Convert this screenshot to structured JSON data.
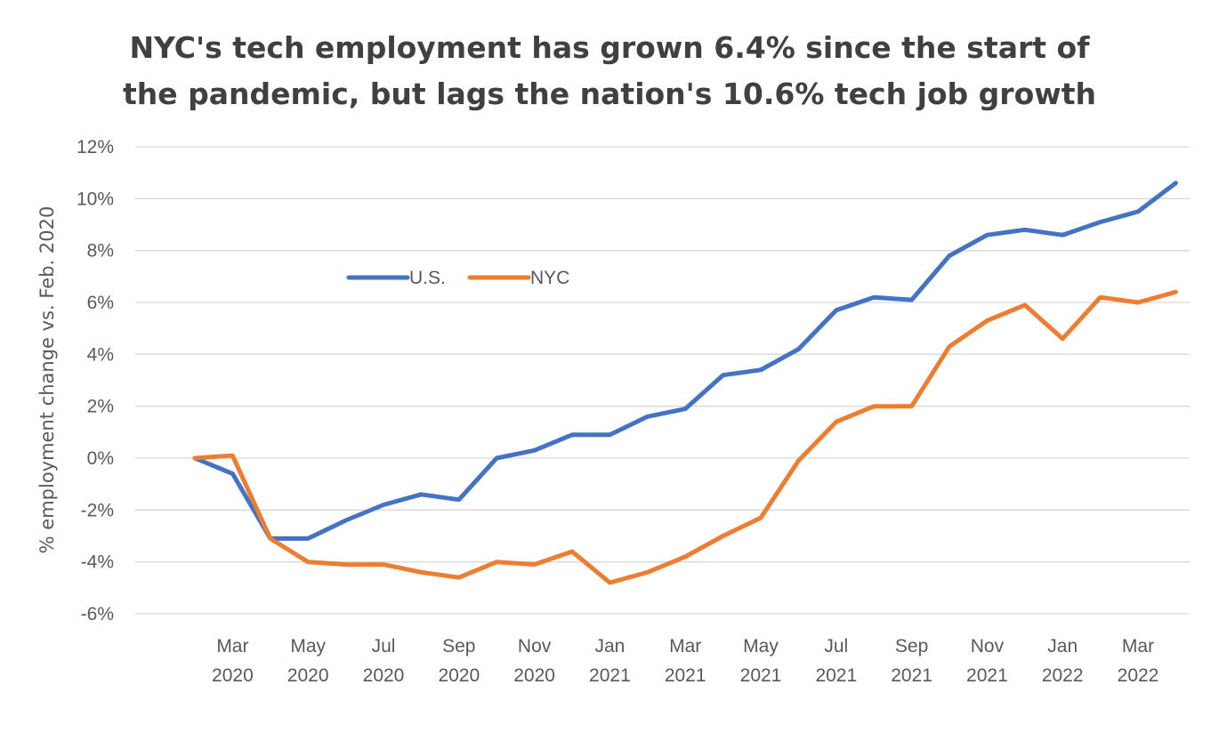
{
  "chart_data": {
    "type": "line",
    "title_line1": "NYC's tech employment has grown 6.4% since the start of",
    "title_line2": "the pandemic, but lags the nation's 10.6% tech job growth",
    "ylabel": "% employment  change vs. Feb. 2020",
    "xlabel": "",
    "ylim": [
      -6,
      12
    ],
    "yticks": [
      "-6%",
      "-4%",
      "-2%",
      "0%",
      "2%",
      "4%",
      "6%",
      "8%",
      "10%",
      "12%"
    ],
    "grid": true,
    "legend_position": "upper-left",
    "x": [
      "Feb 2020",
      "Mar 2020",
      "Apr 2020",
      "May 2020",
      "Jun 2020",
      "Jul 2020",
      "Aug 2020",
      "Sep 2020",
      "Oct 2020",
      "Nov 2020",
      "Dec 2020",
      "Jan 2021",
      "Feb 2021",
      "Mar 2021",
      "Apr 2021",
      "May 2021",
      "Jun 2021",
      "Jul 2021",
      "Aug 2021",
      "Sep 2021",
      "Oct 2021",
      "Nov 2021",
      "Dec 2021",
      "Jan 2022",
      "Feb 2022",
      "Mar 2022",
      "Apr 2022"
    ],
    "xtick_labels": [
      {
        "month": "Mar",
        "year": "2020",
        "index": 1
      },
      {
        "month": "May",
        "year": "2020",
        "index": 3
      },
      {
        "month": "Jul",
        "year": "2020",
        "index": 5
      },
      {
        "month": "Sep",
        "year": "2020",
        "index": 7
      },
      {
        "month": "Nov",
        "year": "2020",
        "index": 9
      },
      {
        "month": "Jan",
        "year": "2021",
        "index": 11
      },
      {
        "month": "Mar",
        "year": "2021",
        "index": 13
      },
      {
        "month": "May",
        "year": "2021",
        "index": 15
      },
      {
        "month": "Jul",
        "year": "2021",
        "index": 17
      },
      {
        "month": "Sep",
        "year": "2021",
        "index": 19
      },
      {
        "month": "Nov",
        "year": "2021",
        "index": 21
      },
      {
        "month": "Jan",
        "year": "2022",
        "index": 23
      },
      {
        "month": "Mar",
        "year": "2022",
        "index": 25
      }
    ],
    "series": [
      {
        "name": "U.S.",
        "color": "#4472C4",
        "values": [
          0,
          -0.6,
          -3.1,
          -3.1,
          -2.4,
          -1.8,
          -1.4,
          -1.6,
          0,
          0.3,
          0.9,
          0.9,
          1.6,
          1.9,
          3.2,
          3.4,
          4.2,
          5.7,
          6.2,
          6.1,
          7.8,
          8.6,
          8.8,
          8.6,
          9.1,
          9.5,
          10.6
        ]
      },
      {
        "name": "NYC",
        "color": "#ED7D31",
        "values": [
          0,
          0.1,
          -3.1,
          -4.0,
          -4.1,
          -4.1,
          -4.4,
          -4.6,
          -4.0,
          -4.1,
          -3.6,
          -4.8,
          -4.4,
          -3.8,
          -3.0,
          -2.3,
          -0.1,
          1.4,
          2.0,
          2.0,
          4.3,
          5.3,
          5.9,
          4.6,
          6.2,
          6.0,
          6.4
        ]
      }
    ]
  }
}
